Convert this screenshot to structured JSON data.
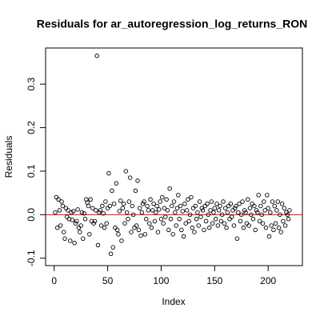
{
  "chart_data": {
    "type": "scatter",
    "title": "Residuals for ar_autoregression_log_returns_RON",
    "x_label": "Index",
    "y_label": "Residuals",
    "xlim": [
      -8,
      232
    ],
    "ylim": [
      -0.117,
      0.383
    ],
    "xticks": [
      0,
      50,
      100,
      150,
      200
    ],
    "yticks": [
      -0.1,
      {
        "value": 0,
        "label": "0.0"
      },
      0.1,
      0.2,
      0.3
    ],
    "hline": 0,
    "hline_color": "#ff0000",
    "color": "#000000",
    "x": [
      1,
      2,
      3,
      4,
      5,
      6,
      7,
      8,
      9,
      10,
      11,
      12,
      13,
      14,
      15,
      16,
      17,
      18,
      19,
      20,
      21,
      22,
      23,
      24,
      25,
      26,
      27,
      28,
      29,
      30,
      31,
      32,
      33,
      34,
      35,
      36,
      37,
      38,
      39,
      40,
      41,
      42,
      43,
      44,
      45,
      46,
      47,
      48,
      49,
      50,
      51,
      52,
      53,
      54,
      55,
      56,
      57,
      58,
      59,
      60,
      61,
      62,
      63,
      64,
      65,
      66,
      67,
      68,
      69,
      70,
      71,
      72,
      73,
      74,
      75,
      76,
      77,
      78,
      79,
      80,
      81,
      82,
      83,
      84,
      85,
      86,
      87,
      88,
      89,
      90,
      91,
      92,
      93,
      94,
      95,
      96,
      97,
      98,
      99,
      100,
      101,
      102,
      103,
      104,
      105,
      106,
      107,
      108,
      109,
      110,
      111,
      112,
      113,
      114,
      115,
      116,
      117,
      118,
      119,
      120,
      121,
      122,
      123,
      124,
      125,
      126,
      127,
      128,
      129,
      130,
      131,
      132,
      133,
      134,
      135,
      136,
      137,
      138,
      139,
      140,
      141,
      142,
      143,
      144,
      145,
      146,
      147,
      148,
      149,
      150,
      151,
      152,
      153,
      154,
      155,
      156,
      157,
      158,
      159,
      160,
      161,
      162,
      163,
      164,
      165,
      166,
      167,
      168,
      169,
      170,
      171,
      172,
      173,
      174,
      175,
      176,
      177,
      178,
      179,
      180,
      181,
      182,
      183,
      184,
      185,
      186,
      187,
      188,
      189,
      190,
      191,
      192,
      193,
      194,
      195,
      196,
      197,
      198,
      199,
      200,
      201,
      202,
      203,
      204,
      205,
      206,
      207,
      208,
      209,
      210,
      211,
      212,
      213,
      214,
      215,
      216,
      217,
      218,
      219,
      220
    ],
    "values": [
      0.005,
      0.04,
      -0.03,
      0.035,
      0.01,
      -0.025,
      0.03,
      0.02,
      -0.04,
      -0.055,
      0.015,
      -0.005,
      0.01,
      -0.01,
      -0.06,
      0.005,
      -0.012,
      0.008,
      -0.065,
      -0.02,
      -0.015,
      0.012,
      -0.03,
      -0.04,
      -0.025,
      0.005,
      -0.055,
      0.003,
      -0.01,
      0.035,
      0.028,
      0.02,
      -0.045,
      0.035,
      -0.015,
      0.015,
      -0.02,
      -0.015,
      0.01,
      0.365,
      -0.07,
      0.005,
      0.01,
      -0.025,
      0.02,
      0.003,
      -0.03,
      0.03,
      -0.02,
      0.015,
      0.095,
      0.02,
      -0.09,
      0.055,
      -0.075,
      0.025,
      -0.03,
      0.072,
      -0.035,
      -0.045,
      0.008,
      0.032,
      -0.06,
      0.015,
      0.025,
      -0.02,
      0.1,
      0.005,
      -0.01,
      0.03,
      0.085,
      -0.04,
      0.02,
      0.0,
      -0.03,
      0.055,
      -0.025,
      0.078,
      -0.035,
      0.015,
      -0.048,
      0.005,
      0.025,
      0.03,
      -0.045,
      -0.01,
      0.02,
      0.01,
      -0.02,
      0.035,
      -0.03,
      0.01,
      0.025,
      -0.015,
      0.005,
      0.02,
      -0.04,
      0.012,
      0.03,
      -0.01,
      0.04,
      -0.02,
      0.015,
      -0.005,
      0.035,
      0.01,
      -0.035,
      0.06,
      -0.01,
      0.02,
      -0.045,
      0.03,
      0.005,
      -0.025,
      0.015,
      0.045,
      -0.01,
      0.02,
      -0.035,
      0.008,
      -0.05,
      0.025,
      -0.02,
      0.01,
      0.035,
      -0.015,
      0.0,
      0.04,
      -0.03,
      0.015,
      -0.04,
      0.02,
      -0.01,
      0.005,
      -0.025,
      0.03,
      -0.005,
      0.015,
      0.01,
      -0.035,
      0.02,
      -0.015,
      0.025,
      0.0,
      -0.03,
      0.01,
      0.03,
      -0.02,
      0.005,
      0.015,
      -0.01,
      0.025,
      -0.025,
      0.01,
      0.02,
      -0.015,
      0.0,
      0.03,
      -0.02,
      0.015,
      -0.03,
      0.005,
      0.02,
      -0.01,
      0.025,
      -0.005,
      0.01,
      -0.025,
      0.015,
      0.02,
      -0.055,
      0.005,
      0.025,
      -0.015,
      0.0,
      0.03,
      -0.03,
      0.01,
      0.005,
      -0.02,
      0.035,
      -0.025,
      0.015,
      0.0,
      0.025,
      -0.01,
      0.02,
      -0.035,
      0.01,
      0.005,
      0.045,
      -0.015,
      0.02,
      0.0,
      -0.02,
      0.03,
      0.01,
      -0.03,
      0.045,
      0.015,
      -0.05,
      0.005,
      -0.025,
      0.03,
      -0.035,
      0.02,
      -0.02,
      0.01,
      0.03,
      -0.03,
      0.0,
      -0.04,
      0.025,
      -0.015,
      0.015,
      -0.025,
      0.005,
      0.0,
      -0.01,
      0.01
    ]
  }
}
